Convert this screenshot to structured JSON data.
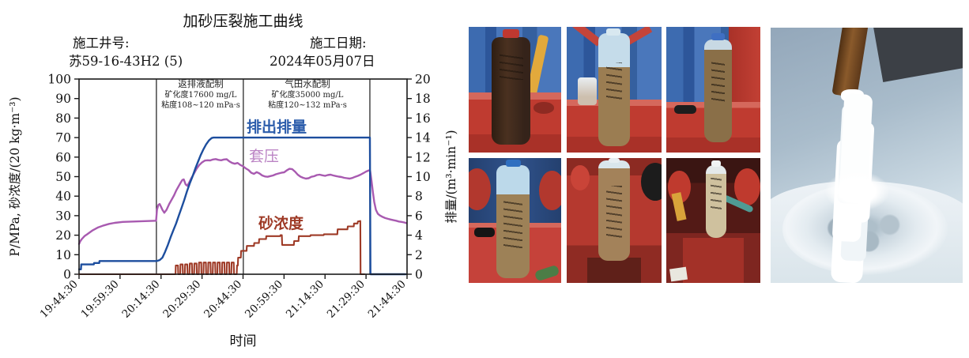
{
  "chart_data": {
    "type": "line",
    "title": "加砂压裂施工曲线",
    "well_label": "施工井号:",
    "well_value": "苏59-16-43H2 (5)",
    "date_label": "施工日期:",
    "date_value": "2024年05月07日",
    "xlabel": "时间",
    "ylabel_left": "P/MPa, 砂浓度/(20 kg·m⁻³)",
    "ylabel_right": "排量/(m³·min⁻¹)",
    "x_ticks": [
      "19:44:30",
      "19:59:30",
      "20:14:30",
      "20:29:30",
      "20:44:30",
      "20:59:30",
      "21:14:30",
      "21:29:30",
      "21:44:30"
    ],
    "x_tick_interval_minutes": 15,
    "x_range_minutes": [
      0,
      120
    ],
    "ylim_left": [
      0,
      100
    ],
    "ytick_step_left": 10,
    "ylim_right": [
      0,
      20
    ],
    "ytick_step_right": 2,
    "grid": false,
    "phase_lines_minutes": [
      28.3,
      60.1,
      106.4
    ],
    "annotations": [
      {
        "lines": [
          "返排液配制",
          "矿化度17600 mg/L",
          "粘度108~120 mPa·s"
        ],
        "center_minute": 44
      },
      {
        "lines": [
          "气田水配制",
          "矿化度35000 mg/L",
          "粘度120~132 mPa·s"
        ],
        "center_minute": 83
      }
    ],
    "series": [
      {
        "name": "排出排量",
        "axis": "right",
        "color": "#1d4e9e",
        "width": 2.4,
        "points": [
          [
            0,
            0.5
          ],
          [
            0.7,
            0.5
          ],
          [
            0.8,
            1.0
          ],
          [
            5.4,
            1.0
          ],
          [
            5.5,
            1.15
          ],
          [
            7.4,
            1.15
          ],
          [
            7.5,
            1.35
          ],
          [
            28.4,
            1.35
          ],
          [
            29.5,
            1.45
          ],
          [
            30.5,
            1.7
          ],
          [
            31.5,
            2.3
          ],
          [
            32.5,
            3.0
          ],
          [
            33.5,
            3.8
          ],
          [
            34.5,
            4.5
          ],
          [
            35.5,
            5.2
          ],
          [
            36.5,
            6.0
          ],
          [
            37.5,
            6.8
          ],
          [
            38.5,
            7.6
          ],
          [
            39.5,
            8.5
          ],
          [
            40.5,
            9.3
          ],
          [
            41.5,
            10.0
          ],
          [
            42.5,
            10.8
          ],
          [
            43.5,
            11.5
          ],
          [
            44.5,
            12.2
          ],
          [
            45.5,
            12.8
          ],
          [
            46.5,
            13.3
          ],
          [
            47.5,
            13.7
          ],
          [
            48.5,
            13.95
          ],
          [
            49.2,
            14.0
          ],
          [
            106.4,
            14.0
          ],
          [
            106.6,
            0
          ],
          [
            119.5,
            0
          ]
        ]
      },
      {
        "name": "套压",
        "axis": "left",
        "color": "#a85ab0",
        "width": 2.4,
        "points": [
          [
            0,
            15.5
          ],
          [
            0.5,
            17
          ],
          [
            1,
            18
          ],
          [
            2,
            19.5
          ],
          [
            3,
            20.5
          ],
          [
            5,
            22.5
          ],
          [
            7,
            24
          ],
          [
            9,
            25
          ],
          [
            11,
            25.8
          ],
          [
            13,
            26.3
          ],
          [
            16,
            26.8
          ],
          [
            20,
            27
          ],
          [
            24,
            27.2
          ],
          [
            28.2,
            27.4
          ],
          [
            28.5,
            33
          ],
          [
            29,
            35.5
          ],
          [
            29.5,
            36
          ],
          [
            30,
            34.5
          ],
          [
            30.5,
            33
          ],
          [
            31.2,
            31.5
          ],
          [
            32,
            33
          ],
          [
            33,
            36
          ],
          [
            34,
            38.5
          ],
          [
            34.8,
            40.5
          ],
          [
            35.6,
            43
          ],
          [
            36.4,
            45
          ],
          [
            37.2,
            47
          ],
          [
            37.8,
            48.3
          ],
          [
            38.3,
            48.6
          ],
          [
            39,
            46
          ],
          [
            39.6,
            45.3
          ],
          [
            40.3,
            47
          ],
          [
            41,
            49
          ],
          [
            42,
            51.5
          ],
          [
            43,
            54
          ],
          [
            44,
            56
          ],
          [
            45,
            57.3
          ],
          [
            46,
            58.2
          ],
          [
            47,
            58.4
          ],
          [
            48,
            58.3
          ],
          [
            49,
            58.8
          ],
          [
            50,
            59
          ],
          [
            51,
            58.6
          ],
          [
            52,
            58.4
          ],
          [
            53,
            58.8
          ],
          [
            54,
            58.9
          ],
          [
            55,
            57.8
          ],
          [
            56,
            57
          ],
          [
            57,
            56.6
          ],
          [
            58,
            57
          ],
          [
            59,
            56
          ],
          [
            60,
            55.3
          ],
          [
            61,
            54.2
          ],
          [
            62,
            53.4
          ],
          [
            63,
            52
          ],
          [
            64,
            51.4
          ],
          [
            65,
            52.3
          ],
          [
            66,
            51.6
          ],
          [
            67,
            50.6
          ],
          [
            68,
            50.1
          ],
          [
            69,
            49.9
          ],
          [
            70,
            50.3
          ],
          [
            71,
            50.6
          ],
          [
            72,
            51.2
          ],
          [
            73,
            51.6
          ],
          [
            74,
            52
          ],
          [
            75,
            52.2
          ],
          [
            76,
            53.2
          ],
          [
            77,
            54
          ],
          [
            78,
            53.8
          ],
          [
            79,
            52.6
          ],
          [
            80,
            51
          ],
          [
            81,
            50
          ],
          [
            82,
            49.4
          ],
          [
            83,
            49
          ],
          [
            84,
            49.2
          ],
          [
            85,
            49.9
          ],
          [
            86,
            50.2
          ],
          [
            87,
            50.8
          ],
          [
            88,
            51
          ],
          [
            89,
            50.7
          ],
          [
            90,
            50.4
          ],
          [
            91,
            50.8
          ],
          [
            92,
            51
          ],
          [
            93,
            50.6
          ],
          [
            94,
            50.3
          ],
          [
            95,
            50
          ],
          [
            96,
            49.8
          ],
          [
            97,
            49.4
          ],
          [
            98,
            49.2
          ],
          [
            99,
            49
          ],
          [
            100,
            49.3
          ],
          [
            101,
            49.9
          ],
          [
            102,
            50.4
          ],
          [
            103,
            51
          ],
          [
            104,
            51.8
          ],
          [
            105,
            52.6
          ],
          [
            106,
            53.2
          ],
          [
            106.5,
            53
          ],
          [
            107,
            48
          ],
          [
            107.5,
            42
          ],
          [
            108,
            37
          ],
          [
            108.6,
            33
          ],
          [
            109.3,
            31
          ],
          [
            110,
            30.2
          ],
          [
            111,
            29.4
          ],
          [
            112,
            28.8
          ],
          [
            113,
            28.4
          ],
          [
            114,
            28
          ],
          [
            115,
            27.7
          ],
          [
            116,
            27.4
          ],
          [
            117,
            27
          ],
          [
            118,
            26.8
          ],
          [
            119,
            26.5
          ],
          [
            119.8,
            26.2
          ]
        ]
      },
      {
        "name": "砂浓度",
        "axis": "left",
        "color": "#9e3a26",
        "width": 2.1,
        "points": [
          [
            0,
            0
          ],
          [
            35.2,
            0
          ],
          [
            35.3,
            0
          ],
          [
            35.4,
            4.5
          ],
          [
            36.2,
            4.5
          ],
          [
            36.3,
            0
          ],
          [
            37.0,
            0
          ],
          [
            37.1,
            5
          ],
          [
            37.9,
            5
          ],
          [
            38.0,
            0
          ],
          [
            38.7,
            0
          ],
          [
            38.8,
            5
          ],
          [
            39.6,
            5
          ],
          [
            39.7,
            0
          ],
          [
            40.4,
            0
          ],
          [
            40.5,
            5.5
          ],
          [
            41.3,
            5.5
          ],
          [
            41.4,
            0
          ],
          [
            42.1,
            0
          ],
          [
            42.2,
            5.5
          ],
          [
            43.0,
            5.5
          ],
          [
            43.1,
            0
          ],
          [
            43.8,
            0
          ],
          [
            43.9,
            6
          ],
          [
            44.7,
            6
          ],
          [
            44.8,
            0
          ],
          [
            45.5,
            0
          ],
          [
            45.6,
            6
          ],
          [
            46.4,
            6
          ],
          [
            46.5,
            0
          ],
          [
            47.2,
            0
          ],
          [
            47.3,
            6
          ],
          [
            48.1,
            6
          ],
          [
            48.2,
            0
          ],
          [
            48.9,
            0
          ],
          [
            49.0,
            6
          ],
          [
            49.8,
            6
          ],
          [
            49.9,
            0
          ],
          [
            50.6,
            0
          ],
          [
            50.7,
            6
          ],
          [
            51.5,
            6
          ],
          [
            51.6,
            0
          ],
          [
            52.3,
            0
          ],
          [
            52.4,
            6
          ],
          [
            53.2,
            6
          ],
          [
            53.3,
            0
          ],
          [
            54.0,
            0
          ],
          [
            54.1,
            6
          ],
          [
            54.9,
            6
          ],
          [
            55.0,
            0
          ],
          [
            55.7,
            0
          ],
          [
            55.8,
            6
          ],
          [
            56.6,
            6
          ],
          [
            56.7,
            0
          ],
          [
            57.7,
            0
          ],
          [
            57.8,
            4.5
          ],
          [
            58.1,
            4.5
          ],
          [
            58.2,
            8.5
          ],
          [
            59.2,
            8.5
          ],
          [
            59.3,
            12
          ],
          [
            61.3,
            12
          ],
          [
            61.4,
            14.5
          ],
          [
            64.0,
            14.5
          ],
          [
            64.1,
            16
          ],
          [
            65.8,
            16
          ],
          [
            65.9,
            18
          ],
          [
            68.4,
            18
          ],
          [
            68.5,
            19.5
          ],
          [
            73.6,
            19.5
          ],
          [
            73.7,
            20
          ],
          [
            74.2,
            20
          ],
          [
            74.3,
            15
          ],
          [
            78.6,
            15
          ],
          [
            78.7,
            17
          ],
          [
            80.3,
            17
          ],
          [
            80.4,
            19.5
          ],
          [
            84.6,
            19.5
          ],
          [
            84.7,
            20
          ],
          [
            89.5,
            20
          ],
          [
            89.6,
            20.5
          ],
          [
            94.5,
            20.5
          ],
          [
            94.6,
            23
          ],
          [
            98.2,
            23
          ],
          [
            98.3,
            24.5
          ],
          [
            100.5,
            24.5
          ],
          [
            100.6,
            26
          ],
          [
            101.9,
            26
          ],
          [
            102.0,
            27
          ],
          [
            102.9,
            27.3
          ],
          [
            103.0,
            0
          ],
          [
            104.4,
            0
          ]
        ]
      }
    ]
  },
  "photos": {
    "grid": [
      {
        "description": "dark brown flowback sand sample bottle with red cap standing on red tank, blue rig wall and yellow pipe behind"
      },
      {
        "description": "sand sample bottle with clear upper half on red stand, blue container and white cup behind"
      },
      {
        "description": "tan sand sample bottle with blue cap beside red tank, black handle on red deck"
      },
      {
        "description": "sand sample bottle with blue cap in front of red wellhead pumps and dark blue wall"
      },
      {
        "description": "bottle completely filled with tan sand on red equipment, black tire behind"
      },
      {
        "description": "small pale sand sample bottle among red valves, hoses and dark machinery"
      }
    ],
    "large": {
      "description": "white foam proppant column flowing from brown pipe onto a pile of white foam"
    }
  }
}
